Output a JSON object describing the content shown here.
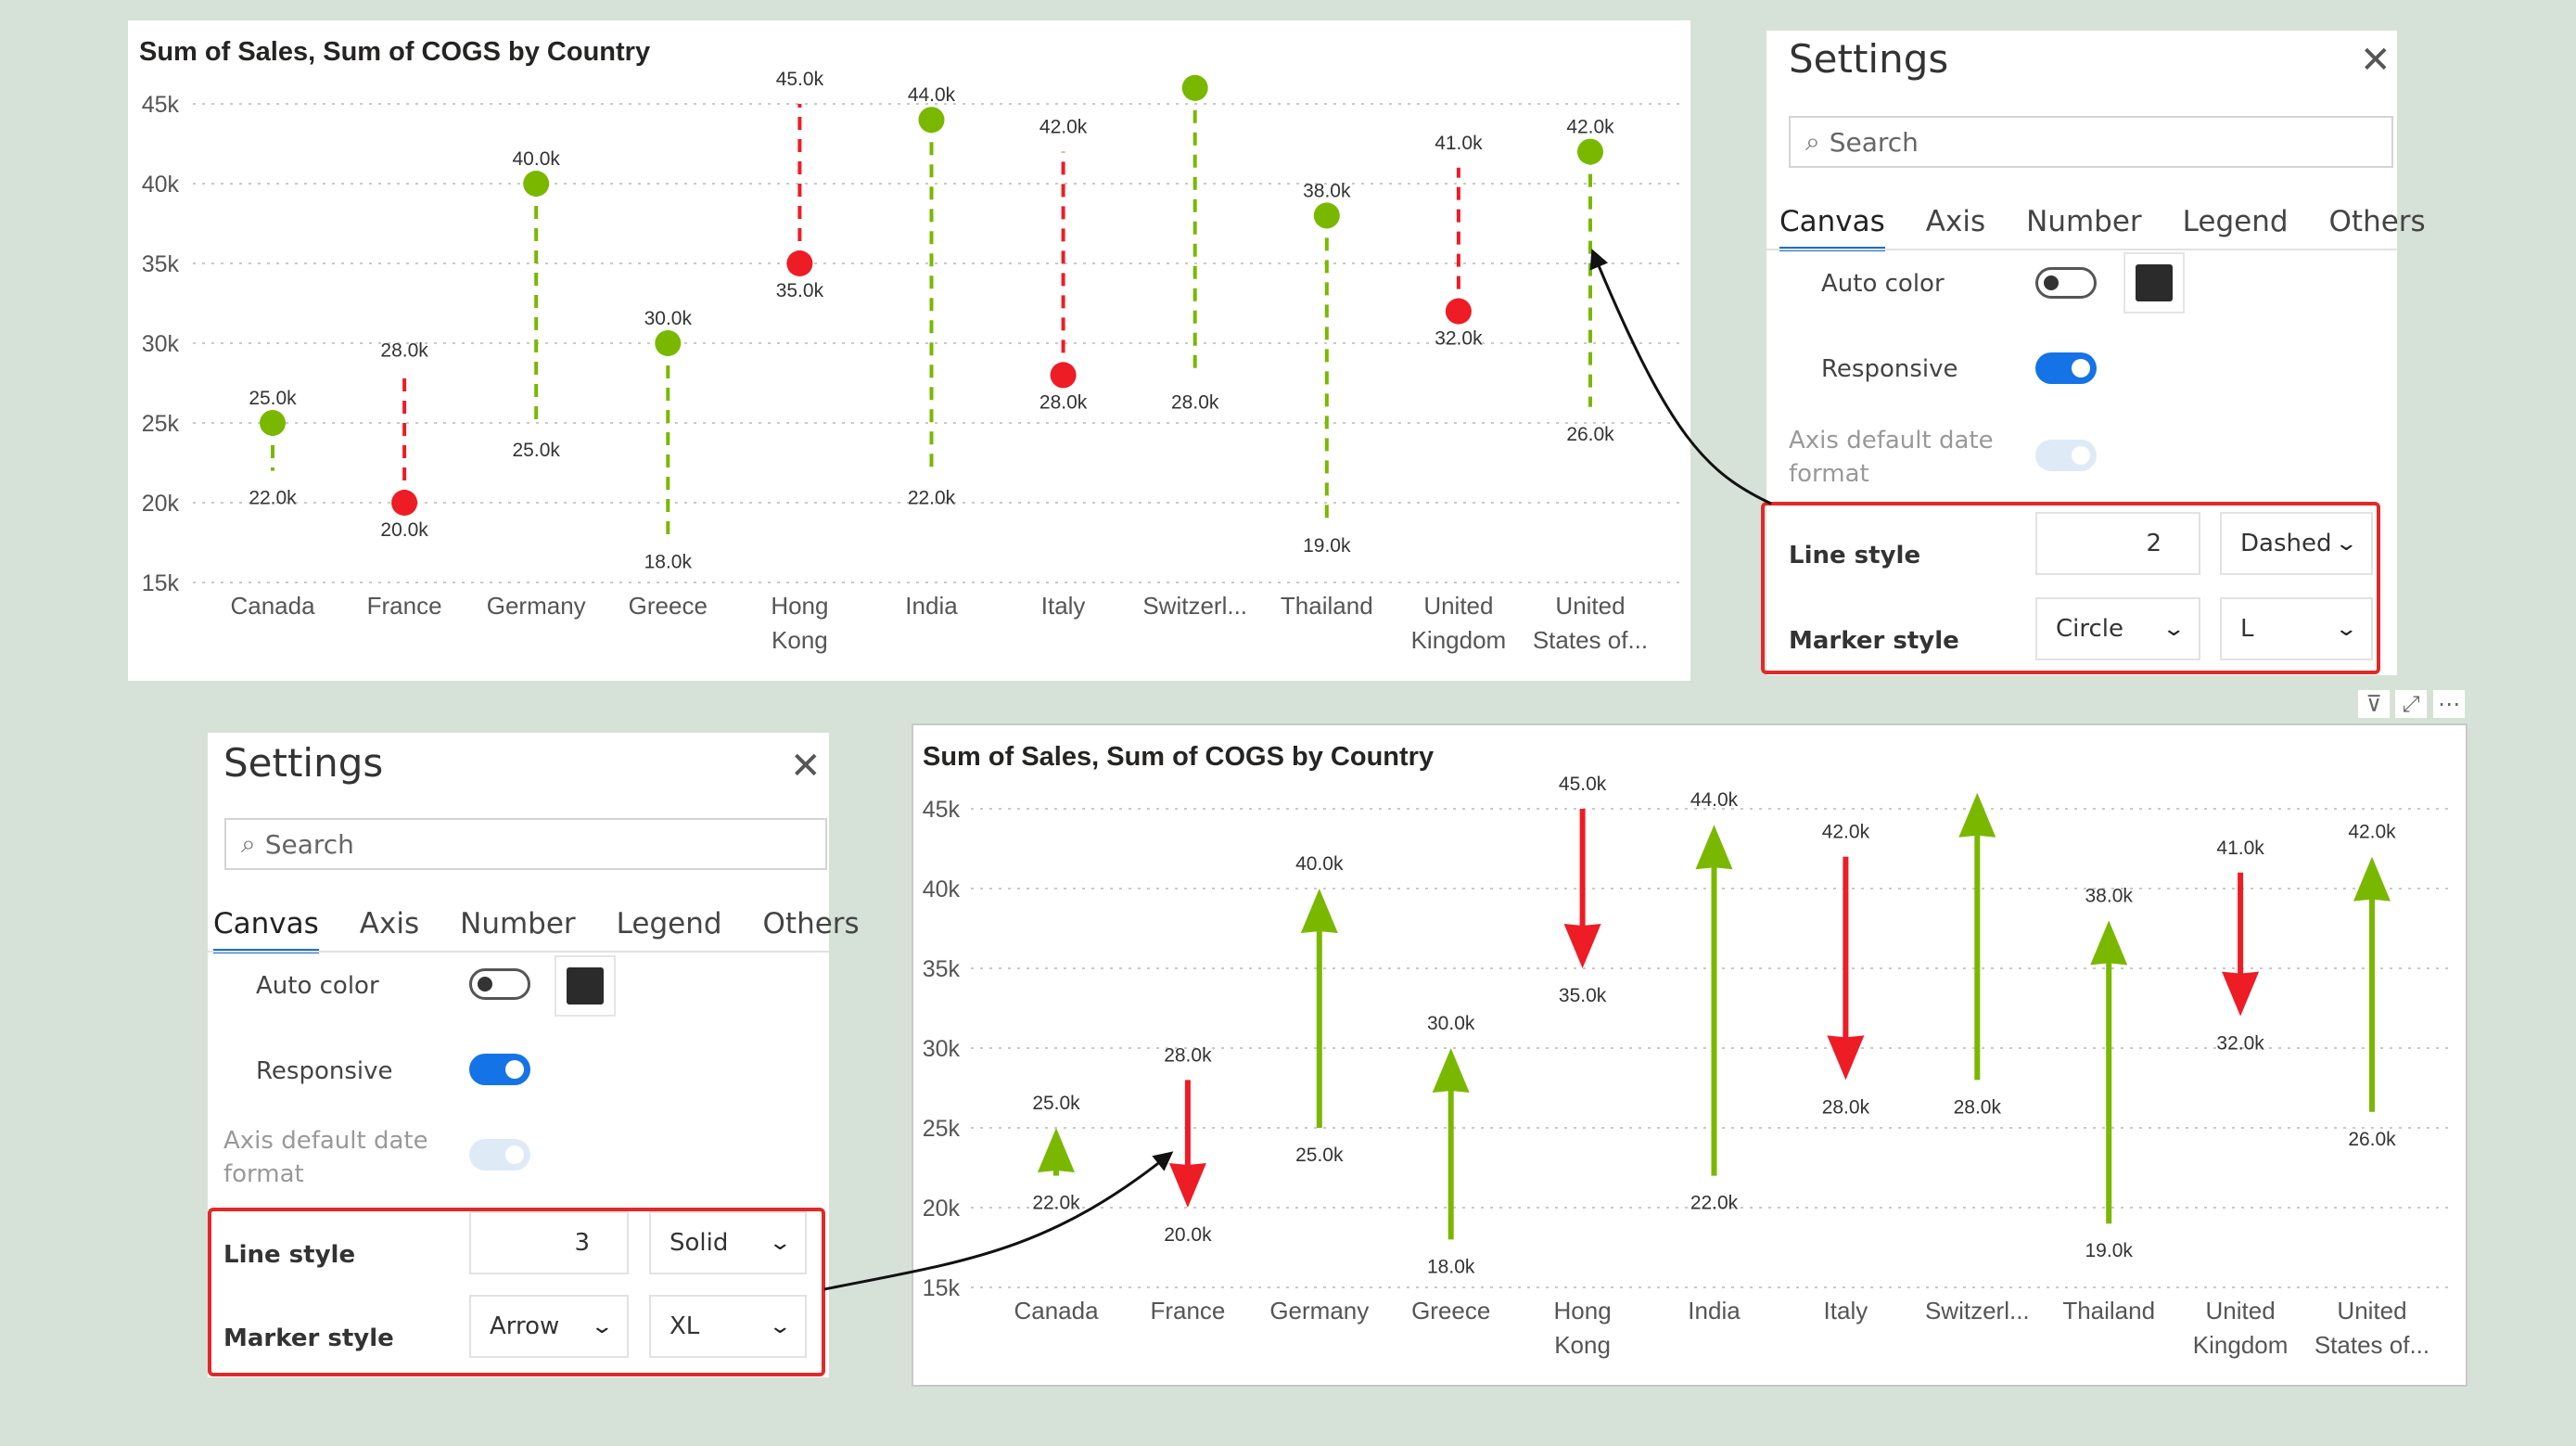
{
  "colors": {
    "increase": "#7ab800",
    "decrease": "#ee1c25",
    "highlight": "#e02a2a",
    "toggle_on": "#1473e6"
  },
  "chart_data": [
    {
      "type": "line",
      "title": "Sum of Sales, Sum of COGS by Country",
      "categories": [
        "Canada",
        "France",
        "Germany",
        "Greece",
        "Hong Kong",
        "India",
        "Italy",
        "Switzerl...",
        "Thailand",
        "United Kingdom",
        "United States of..."
      ],
      "series": [
        {
          "values": [
            25000,
            20000,
            40000,
            30000,
            35000,
            44000,
            28000,
            46000,
            38000,
            32000,
            42000
          ]
        },
        {
          "values": [
            22000,
            28000,
            25000,
            18000,
            45000,
            22000,
            42000,
            28000,
            19000,
            41000,
            26000
          ]
        }
      ],
      "labels_top": [
        "25.0k",
        "28.0k",
        "40.0k",
        "30.0k",
        "45.0k",
        "44.0k",
        "42.0k",
        "",
        "38.0k",
        "41.0k",
        "42.0k"
      ],
      "labels_bottom": [
        "22.0k",
        "20.0k",
        "25.0k",
        "18.0k",
        "35.0k",
        "22.0k",
        "28.0k",
        "28.0k",
        "19.0k",
        "32.0k",
        "26.0k"
      ],
      "yticks": [
        "15k",
        "20k",
        "25k",
        "30k",
        "35k",
        "40k",
        "45k"
      ],
      "ylim": [
        15000,
        45000
      ],
      "line_style": "dashed",
      "marker": "circle",
      "grid": true
    },
    {
      "type": "line",
      "title": "Sum of Sales, Sum of COGS by Country",
      "categories": [
        "Canada",
        "France",
        "Germany",
        "Greece",
        "Hong Kong",
        "India",
        "Italy",
        "Switzerl...",
        "Thailand",
        "United Kingdom",
        "United States of..."
      ],
      "series": [
        {
          "values": [
            25000,
            20000,
            40000,
            30000,
            35000,
            44000,
            28000,
            46000,
            38000,
            32000,
            42000
          ]
        },
        {
          "values": [
            22000,
            28000,
            25000,
            18000,
            45000,
            22000,
            42000,
            28000,
            19000,
            41000,
            26000
          ]
        }
      ],
      "labels_top": [
        "25.0k",
        "28.0k",
        "40.0k",
        "30.0k",
        "45.0k",
        "44.0k",
        "42.0k",
        "",
        "38.0k",
        "41.0k",
        "42.0k"
      ],
      "labels_bottom": [
        "22.0k",
        "20.0k",
        "25.0k",
        "18.0k",
        "35.0k",
        "22.0k",
        "28.0k",
        "28.0k",
        "19.0k",
        "32.0k",
        "26.0k"
      ],
      "yticks": [
        "15k",
        "20k",
        "25k",
        "30k",
        "35k",
        "40k",
        "45k"
      ],
      "ylim": [
        15000,
        45000
      ],
      "line_style": "solid",
      "marker": "arrow",
      "grid": true
    }
  ],
  "settings_top": {
    "title": "Settings",
    "close_icon": "close-icon",
    "search_placeholder": "Search",
    "tabs": [
      "Canvas",
      "Axis",
      "Number",
      "Legend",
      "Others"
    ],
    "auto_color_label": "Auto color",
    "responsive_label": "Responsive",
    "axis_default_label": "Axis default date format",
    "line_style_label": "Line style",
    "line_width": "2",
    "line_type": "Dashed",
    "marker_style_label": "Marker style",
    "marker_shape": "Circle",
    "marker_size": "L"
  },
  "settings_bottom": {
    "title": "Settings",
    "close_icon": "close-icon",
    "search_placeholder": "Search",
    "tabs": [
      "Canvas",
      "Axis",
      "Number",
      "Legend",
      "Others"
    ],
    "auto_color_label": "Auto color",
    "responsive_label": "Responsive",
    "axis_default_label": "Axis default date format",
    "line_style_label": "Line style",
    "line_width": "3",
    "line_type": "Solid",
    "marker_style_label": "Marker style",
    "marker_shape": "Arrow",
    "marker_size": "XL"
  },
  "visual_toolbar": [
    "filter-icon",
    "focus-mode-icon",
    "more-options-icon"
  ]
}
